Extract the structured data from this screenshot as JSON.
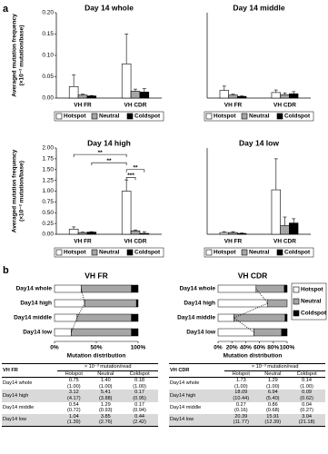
{
  "panel_labels": [
    "a",
    "b"
  ],
  "chart_data": [
    {
      "type": "bar",
      "title": "Day 14  whole",
      "y_label": [
        "Averaged mutation frequency",
        "(×10⁻² mutation/base)"
      ],
      "categories": [
        "VH FR",
        "VH CDR"
      ],
      "series": [
        {
          "name": "Hotspot",
          "color": "#ffffff",
          "values": [
            0.027,
            0.08
          ],
          "errors": [
            0.027,
            0.07
          ]
        },
        {
          "name": "Neutral",
          "color": "#a6a6a6",
          "values": [
            0.007,
            0.016
          ],
          "errors": [
            0.002,
            0.005
          ]
        },
        {
          "name": "Coldspot",
          "color": "#000000",
          "values": [
            0.005,
            0.014
          ],
          "errors": [
            0.001,
            0.008
          ]
        }
      ],
      "ylim": [
        0,
        0.2
      ],
      "yticks": [
        {
          "value": 0,
          "label": "0.00"
        },
        {
          "value": 0.05,
          "label": "0.05"
        },
        {
          "value": 0.1,
          "label": "0.10"
        },
        {
          "value": 0.15,
          "label": "0.15"
        },
        {
          "value": 0.2,
          "label": "0.20"
        }
      ],
      "legend": "bottom"
    },
    {
      "type": "bar",
      "title": "Day 14  middle",
      "categories": [
        "VH FR",
        "VH CDR"
      ],
      "series": [
        {
          "name": "Hotspot",
          "color": "#ffffff",
          "values": [
            0.018,
            0.013
          ],
          "errors": [
            0.01,
            0.006
          ]
        },
        {
          "name": "Neutral",
          "color": "#a6a6a6",
          "values": [
            0.007,
            0.008
          ],
          "errors": [
            0.002,
            0.004
          ]
        },
        {
          "name": "Coldspot",
          "color": "#000000",
          "values": [
            0.004,
            0.01
          ],
          "errors": [
            0.001,
            0.005
          ]
        }
      ],
      "ylim": [
        0,
        0.2
      ],
      "legend": "bottom"
    },
    {
      "type": "bar",
      "title": "Day 14  high",
      "y_label": [
        "Averaged mutation frequency",
        "(×10⁻² mutation/base)"
      ],
      "categories": [
        "VH FR",
        "VH CDR"
      ],
      "series": [
        {
          "name": "Hotspot",
          "color": "#ffffff",
          "values": [
            0.12,
            1.0
          ],
          "errors": [
            0.05,
            0.26
          ]
        },
        {
          "name": "Neutral",
          "color": "#a6a6a6",
          "values": [
            0.04,
            0.08
          ],
          "errors": [
            0.01,
            0.02
          ]
        },
        {
          "name": "Coldspot",
          "color": "#000000",
          "values": [
            0.05,
            0.02
          ],
          "errors": [
            0.01,
            0.04
          ]
        }
      ],
      "ylim": [
        0,
        2
      ],
      "yticks": [
        {
          "value": 0,
          "label": "0.00"
        },
        {
          "value": 0.25,
          "label": "0.25"
        },
        {
          "value": 0.5,
          "label": "0.50"
        },
        {
          "value": 0.75,
          "label": "0.75"
        },
        {
          "value": 1,
          "label": "1.00"
        },
        {
          "value": 1.25,
          "label": "1.25"
        },
        {
          "value": 1.5,
          "label": "1.50"
        },
        {
          "value": 1.75,
          "label": "1.75"
        },
        {
          "value": 2,
          "label": "2.00"
        }
      ],
      "annotations": [
        "**",
        "**",
        "***",
        "**"
      ],
      "legend": "bottom"
    },
    {
      "type": "bar",
      "title": "Day 14  low",
      "categories": [
        "VH FR",
        "VH CDR"
      ],
      "series": [
        {
          "name": "Hotspot",
          "color": "#ffffff",
          "values": [
            0.04,
            1.03
          ],
          "errors": [
            0.02,
            0.72
          ]
        },
        {
          "name": "Neutral",
          "color": "#a6a6a6",
          "values": [
            0.04,
            0.2
          ],
          "errors": [
            0.02,
            0.2
          ]
        },
        {
          "name": "Coldspot",
          "color": "#000000",
          "values": [
            0.02,
            0.26
          ],
          "errors": [
            0.01,
            0.1
          ]
        }
      ],
      "ylim": [
        0,
        2
      ],
      "legend": "bottom"
    },
    {
      "type": "stacked_hbar",
      "title": "VH FR",
      "categories": [
        "Day14 whole",
        "Day14 high",
        "Day14 middle",
        "Day14 low"
      ],
      "series": [
        {
          "name": "Hotspot",
          "color": "#ffffff",
          "values": [
            32,
            36,
            27,
            20
          ]
        },
        {
          "name": "Neutral",
          "color": "#a6a6a6",
          "values": [
            60,
            62,
            65,
            72
          ]
        },
        {
          "name": "Coldspot",
          "color": "#000000",
          "values": [
            8,
            2,
            8,
            8
          ]
        }
      ],
      "xlim": [
        0,
        100
      ],
      "xticks": [
        {
          "value": 0,
          "label": "0%"
        },
        {
          "value": 50,
          "label": "50%"
        },
        {
          "value": 100,
          "label": "100%"
        }
      ],
      "x_label": "Mutation distribution"
    },
    {
      "type": "stacked_hbar",
      "title": "VH CDR",
      "categories": [
        "Day14 whole",
        "Day14 high",
        "Day14 middle",
        "Day14 low"
      ],
      "series": [
        {
          "name": "Hotspot",
          "color": "#ffffff",
          "values": [
            55,
            72,
            23,
            52
          ]
        },
        {
          "name": "Neutral",
          "color": "#a6a6a6",
          "values": [
            41,
            28,
            74,
            40
          ]
        },
        {
          "name": "Coldspot",
          "color": "#000000",
          "values": [
            4,
            0,
            3,
            8
          ]
        }
      ],
      "xlim": [
        0,
        100
      ],
      "xticks": [
        {
          "value": 0,
          "label": "0%"
        },
        {
          "value": 20,
          "label": "20%"
        },
        {
          "value": 40,
          "label": "40%"
        },
        {
          "value": 60,
          "label": "60%"
        },
        {
          "value": 80,
          "label": "80%"
        },
        {
          "value": 100,
          "label": "100%"
        }
      ],
      "x_label": "Mutation distribution",
      "legend": "right"
    }
  ],
  "tables": [
    {
      "corner": "VH FR",
      "unit": "× 10⁻³ mutation/read",
      "columns": [
        "Hotspot",
        "Neutral",
        "Coldspot"
      ],
      "rows": [
        {
          "label": "Day14 whole",
          "cells": [
            [
              "0.75",
              "(1.00)"
            ],
            [
              "1.40",
              "(1.00)"
            ],
            [
              "0.18",
              "(1.00)"
            ]
          ]
        },
        {
          "label": "Day14 high",
          "cells": [
            [
              "3.12",
              "(4.17)"
            ],
            [
              "5.41",
              "(3.88)"
            ],
            [
              "0.17",
              "(0.95)"
            ]
          ]
        },
        {
          "label": "Day14 middle",
          "cells": [
            [
              "0.54",
              "(0.72)"
            ],
            [
              "1.29",
              "(0.93)"
            ],
            [
              "0.17",
              "(0.94)"
            ]
          ]
        },
        {
          "label": "Day14 low",
          "cells": [
            [
              "1.04",
              "(1.39)"
            ],
            [
              "3.85",
              "(2.76)"
            ],
            [
              "0.44",
              "(2.42)"
            ]
          ]
        }
      ]
    },
    {
      "corner": "VH CDR",
      "unit": "× 10⁻³ mutation/read",
      "columns": [
        "Hotspot",
        "Neutral",
        "Coldspot"
      ],
      "rows": [
        {
          "label": "Day14 whole",
          "cells": [
            [
              "1.73",
              "(1.00)"
            ],
            [
              "1.29",
              "(1.00)"
            ],
            [
              "0.14",
              "(1.00)"
            ]
          ]
        },
        {
          "label": "Day14 high",
          "cells": [
            [
              "18.09",
              "(10.44)"
            ],
            [
              "6.94",
              "(5.40)"
            ],
            [
              "0.09",
              "(0.62)"
            ]
          ]
        },
        {
          "label": "Day14 middle",
          "cells": [
            [
              "0.27",
              "(0.16)"
            ],
            [
              "0.86",
              "(0.68)"
            ],
            [
              "0.04",
              "(0.27)"
            ]
          ]
        },
        {
          "label": "Day14 low",
          "cells": [
            [
              "20.39",
              "(11.77)"
            ],
            [
              "15.91",
              "(12.39)"
            ],
            [
              "3.04",
              "(21.18)"
            ]
          ]
        }
      ]
    }
  ]
}
